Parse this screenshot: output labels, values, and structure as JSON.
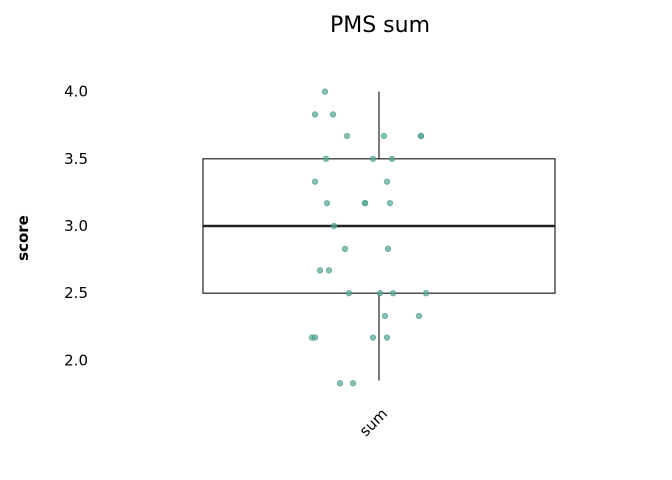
{
  "chart_data": {
    "type": "box",
    "title": "PMS sum",
    "ylabel": "score",
    "xlabel": "",
    "categories": [
      "sum"
    ],
    "ylim": [
      1.8,
      4.2
    ],
    "yticks": [
      2.0,
      2.5,
      3.0,
      3.5,
      4.0
    ],
    "ytick_labels": [
      "2.0",
      "2.5",
      "3.0",
      "3.5",
      "4.0"
    ],
    "box": {
      "min": 1.85,
      "q1": 2.5,
      "median": 3.0,
      "q3": 3.5,
      "max": 4.0
    },
    "points": [
      4.0,
      3.83,
      3.83,
      3.67,
      3.67,
      3.67,
      3.67,
      3.5,
      3.5,
      3.5,
      3.33,
      3.33,
      3.17,
      3.17,
      3.17,
      3.17,
      3.0,
      2.83,
      2.83,
      2.67,
      2.67,
      2.5,
      2.5,
      2.5,
      2.5,
      2.33,
      2.33,
      2.17,
      2.17,
      2.17,
      2.17,
      1.83,
      1.83
    ],
    "grid": false,
    "legend": "none",
    "colors": {
      "point_fill": "#5aab9a",
      "point_stroke": "#3f8f7e",
      "box_stroke": "#222222",
      "median_stroke": "#222222"
    }
  }
}
